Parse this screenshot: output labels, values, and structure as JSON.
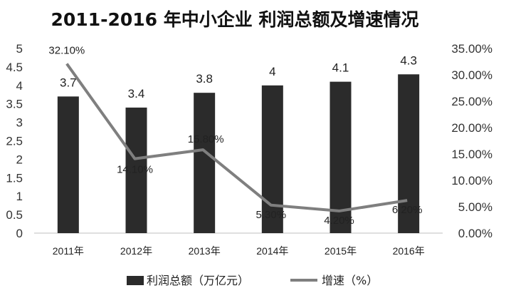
{
  "chart_data": {
    "type": "bar",
    "title": "2011-2016 年中小企业  利润总额及增速情况",
    "categories": [
      "2011年",
      "2012年",
      "2013年",
      "2014年",
      "2015年",
      "2016年"
    ],
    "series": [
      {
        "name": "利润总额（万亿元）",
        "type": "bar",
        "axis": "left",
        "values": [
          3.7,
          3.4,
          3.8,
          4,
          4.1,
          4.3
        ],
        "labels": [
          "3.7",
          "3.4",
          "3.8",
          "4",
          "4.1",
          "4.3"
        ],
        "color": "#2b2b2b"
      },
      {
        "name": "增速（%）",
        "type": "line",
        "axis": "right",
        "values": [
          32.1,
          14.1,
          15.8,
          5.3,
          4.2,
          6.2
        ],
        "labels": [
          "32.10%",
          "14.10%",
          "15.80%",
          "5.30%",
          "4.20%",
          "6.20%"
        ],
        "color": "#7f7f7f"
      }
    ],
    "y_left": {
      "min": 0,
      "max": 5,
      "ticks": [
        "0",
        "0.5",
        "1",
        "1.5",
        "2",
        "2.5",
        "3",
        "3.5",
        "4",
        "4.5",
        "5"
      ]
    },
    "y_right": {
      "min": 0,
      "max": 35,
      "ticks": [
        "0.00%",
        "5.00%",
        "10.00%",
        "15.00%",
        "20.00%",
        "25.00%",
        "30.00%",
        "35.00%"
      ]
    },
    "grid": false,
    "legend": "bottom"
  }
}
